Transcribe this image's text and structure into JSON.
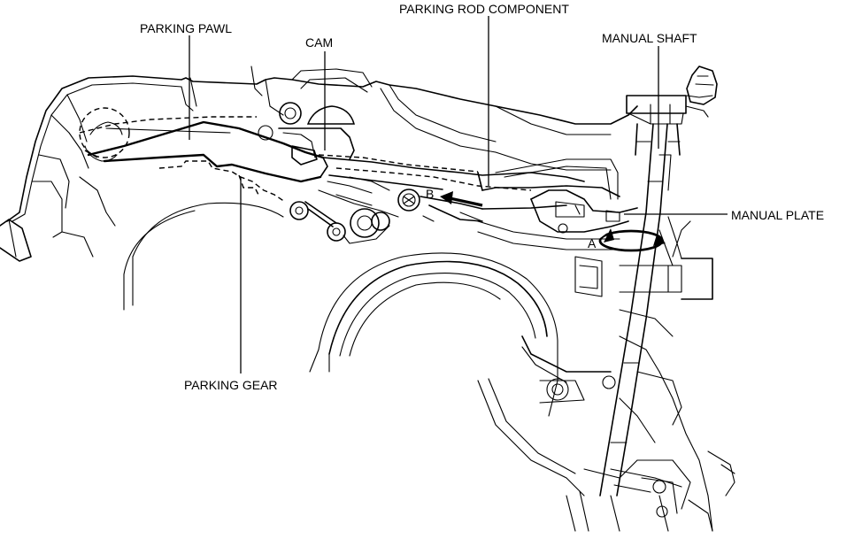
{
  "labels": {
    "parking_pawl": "PARKING PAWL",
    "cam": "CAM",
    "parking_rod_component": "PARKING ROD COMPONENT",
    "manual_shaft": "MANUAL SHAFT",
    "manual_plate": "MANUAL PLATE",
    "parking_gear": "PARKING GEAR",
    "marker_a": "A",
    "marker_b": "B"
  }
}
